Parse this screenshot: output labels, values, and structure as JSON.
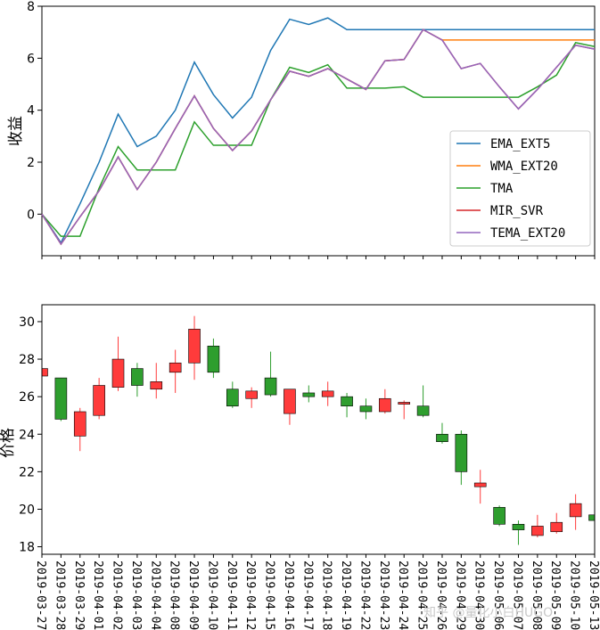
{
  "chart_data": [
    {
      "type": "line",
      "ylabel": "收益",
      "ylim": [
        -1.6,
        8
      ],
      "yticks": [
        0,
        2,
        4,
        6,
        8
      ],
      "legend_position": "lower-right",
      "x_count": 30,
      "series": [
        {
          "name": "EMA_EXT5",
          "color": "#1f77b4",
          "values": [
            0,
            -1.1,
            0.4,
            2.0,
            3.85,
            2.6,
            3.0,
            4.0,
            5.85,
            4.6,
            3.7,
            4.5,
            6.3,
            7.5,
            7.3,
            7.55,
            7.1,
            7.1,
            7.1,
            7.1,
            7.1,
            7.1,
            7.1,
            7.1,
            7.1,
            7.1,
            7.1,
            7.1,
            7.1,
            7.1
          ]
        },
        {
          "name": "WMA_EXT20",
          "color": "#ff7f0e",
          "values": [
            0,
            -1.15,
            -0.1,
            0.9,
            2.2,
            0.95,
            2.0,
            3.3,
            4.55,
            3.3,
            2.45,
            3.2,
            4.4,
            5.5,
            5.3,
            5.6,
            5.2,
            4.8,
            5.9,
            5.95,
            7.1,
            6.7,
            6.7,
            6.7,
            6.7,
            6.7,
            6.7,
            6.7,
            6.7,
            6.7
          ]
        },
        {
          "name": "TMA",
          "color": "#2ca02c",
          "values": [
            0,
            -0.85,
            -0.85,
            1.0,
            2.6,
            1.7,
            1.7,
            1.7,
            3.55,
            2.65,
            2.65,
            2.65,
            4.4,
            5.65,
            5.45,
            5.75,
            4.85,
            4.85,
            4.85,
            4.9,
            4.5,
            4.5,
            4.5,
            4.5,
            4.5,
            4.5,
            4.9,
            5.35,
            6.6,
            6.45
          ]
        },
        {
          "name": "MIR_SVR",
          "color": "#d62728",
          "values": [
            0,
            -1.15,
            -0.1,
            0.9,
            2.2,
            0.95,
            2.0,
            3.3,
            4.55,
            3.3,
            2.45,
            3.2,
            4.4,
            5.5,
            5.3,
            5.6,
            5.2,
            4.8,
            5.9,
            5.95,
            7.1,
            6.7,
            5.6,
            5.8,
            4.9,
            4.05,
            4.8,
            5.65,
            6.5,
            6.35
          ]
        },
        {
          "name": "TEMA_EXT20",
          "color": "#9467bd",
          "values": [
            0,
            -1.15,
            -0.1,
            0.9,
            2.2,
            0.95,
            2.0,
            3.3,
            4.55,
            3.3,
            2.45,
            3.2,
            4.4,
            5.5,
            5.3,
            5.6,
            5.2,
            4.8,
            5.9,
            5.95,
            7.1,
            6.7,
            5.6,
            5.8,
            4.9,
            4.05,
            4.8,
            5.65,
            6.5,
            6.35
          ]
        }
      ]
    },
    {
      "type": "candlestick",
      "ylabel": "价格",
      "ylim": [
        17.6,
        30.9
      ],
      "yticks": [
        18,
        20,
        22,
        24,
        26,
        28,
        30
      ],
      "up_color": "#ff3b3b",
      "down_color": "#2e9e2e",
      "categories": [
        "2019-03-27",
        "2019-03-28",
        "2019-03-29",
        "2019-04-01",
        "2019-04-02",
        "2019-04-03",
        "2019-04-04",
        "2019-04-08",
        "2019-04-09",
        "2019-04-10",
        "2019-04-11",
        "2019-04-12",
        "2019-04-15",
        "2019-04-16",
        "2019-04-17",
        "2019-04-18",
        "2019-04-19",
        "2019-04-22",
        "2019-04-23",
        "2019-04-24",
        "2019-04-25",
        "2019-04-26",
        "2019-04-29",
        "2019-04-30",
        "2019-05-06",
        "2019-05-07",
        "2019-05-08",
        "2019-05-09",
        "2019-05-10",
        "2019-05-13"
      ],
      "candles": [
        {
          "o": 27.1,
          "c": 27.5,
          "h": 27.7,
          "l": 27.0
        },
        {
          "o": 27.0,
          "c": 24.8,
          "h": 27.0,
          "l": 24.7
        },
        {
          "o": 23.9,
          "c": 25.2,
          "h": 25.4,
          "l": 23.1
        },
        {
          "o": 25.0,
          "c": 26.6,
          "h": 27.0,
          "l": 24.8
        },
        {
          "o": 26.5,
          "c": 28.0,
          "h": 29.2,
          "l": 26.3
        },
        {
          "o": 27.5,
          "c": 26.6,
          "h": 27.8,
          "l": 26.0
        },
        {
          "o": 26.4,
          "c": 26.8,
          "h": 27.8,
          "l": 25.9
        },
        {
          "o": 27.3,
          "c": 27.8,
          "h": 28.5,
          "l": 26.2
        },
        {
          "o": 27.8,
          "c": 29.6,
          "h": 30.3,
          "l": 26.9
        },
        {
          "o": 28.7,
          "c": 27.3,
          "h": 29.1,
          "l": 27.0
        },
        {
          "o": 26.4,
          "c": 25.5,
          "h": 26.8,
          "l": 25.4
        },
        {
          "o": 25.9,
          "c": 26.3,
          "h": 26.5,
          "l": 25.4
        },
        {
          "o": 27.0,
          "c": 26.1,
          "h": 28.4,
          "l": 26.0
        },
        {
          "o": 25.1,
          "c": 26.4,
          "h": 26.4,
          "l": 24.5
        },
        {
          "o": 26.2,
          "c": 26.0,
          "h": 26.6,
          "l": 25.7
        },
        {
          "o": 26.0,
          "c": 26.3,
          "h": 26.8,
          "l": 25.5
        },
        {
          "o": 26.0,
          "c": 25.5,
          "h": 26.2,
          "l": 24.9
        },
        {
          "o": 25.5,
          "c": 25.2,
          "h": 25.9,
          "l": 24.8
        },
        {
          "o": 25.2,
          "c": 25.9,
          "h": 26.4,
          "l": 25.1
        },
        {
          "o": 25.6,
          "c": 25.7,
          "h": 25.8,
          "l": 24.8
        },
        {
          "o": 25.5,
          "c": 25.0,
          "h": 26.6,
          "l": 24.9
        },
        {
          "o": 24.0,
          "c": 23.6,
          "h": 24.6,
          "l": 23.5
        },
        {
          "o": 24.0,
          "c": 22.0,
          "h": 24.2,
          "l": 21.3
        },
        {
          "o": 21.2,
          "c": 21.4,
          "h": 22.1,
          "l": 20.3
        },
        {
          "o": 20.1,
          "c": 19.2,
          "h": 20.2,
          "l": 19.1
        },
        {
          "o": 19.2,
          "c": 18.9,
          "h": 19.4,
          "l": 18.1
        },
        {
          "o": 18.6,
          "c": 19.1,
          "h": 19.7,
          "l": 18.5
        },
        {
          "o": 18.8,
          "c": 19.3,
          "h": 19.8,
          "l": 18.7
        },
        {
          "o": 19.6,
          "c": 20.3,
          "h": 20.8,
          "l": 18.9
        },
        {
          "o": 19.7,
          "c": 19.4,
          "h": 19.7,
          "l": 19.4
        }
      ]
    }
  ],
  "watermark": "知乎 @量化小白HUGO"
}
